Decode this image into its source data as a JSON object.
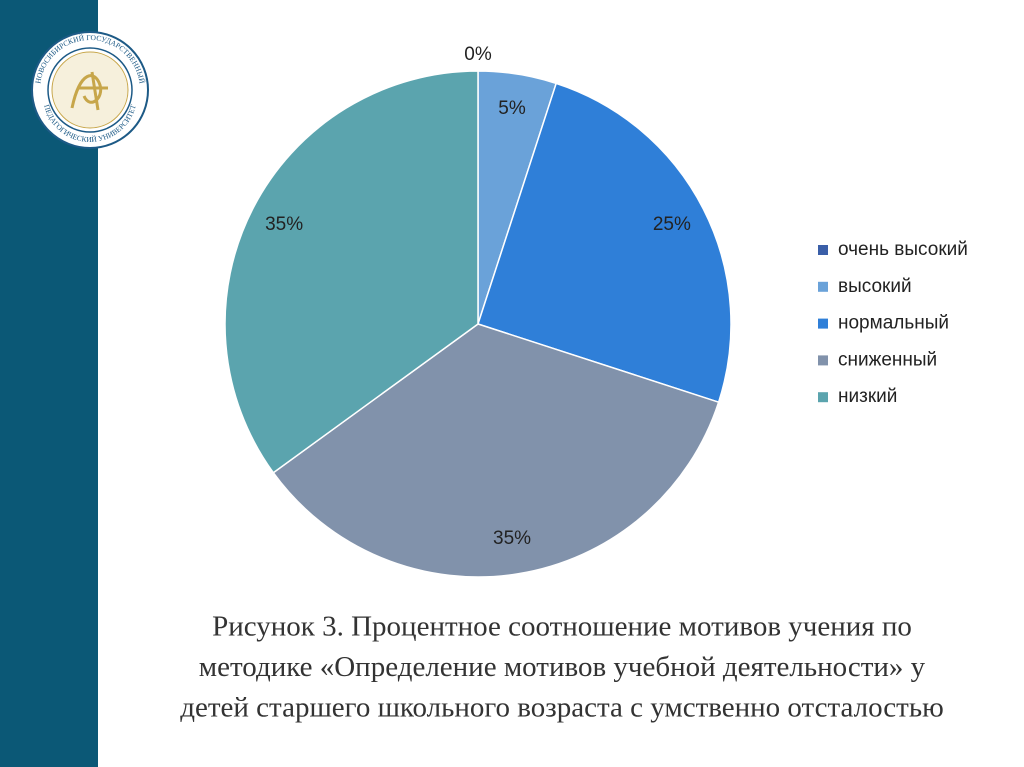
{
  "chart_data": {
    "type": "pie",
    "categories": [
      "очень высокий",
      "высокий",
      "нормальный",
      "сниженный",
      "низкий"
    ],
    "values": [
      0,
      5,
      25,
      35,
      35
    ],
    "value_labels": [
      "0%",
      "5%",
      "25%",
      "35%",
      "35%"
    ],
    "colors": [
      "#3a5fa8",
      "#6aa2d9",
      "#2f7fd8",
      "#8192ab",
      "#5ba4ae"
    ],
    "legend": "right"
  },
  "caption": [
    "Рисунок 3. Процентное соотношение мотивов учения по",
    "методике «Определение мотивов учебной деятельности» у",
    "детей старшего школьного возраста с умственно отсталостью"
  ],
  "logo": {
    "top": "НОВОСИБИРСКИЙ ГОСУДАРСТВЕННЫЙ",
    "bottom": "ПЕДАГОГИЧЕСКИЙ УНИВЕРСИТЕТ"
  }
}
